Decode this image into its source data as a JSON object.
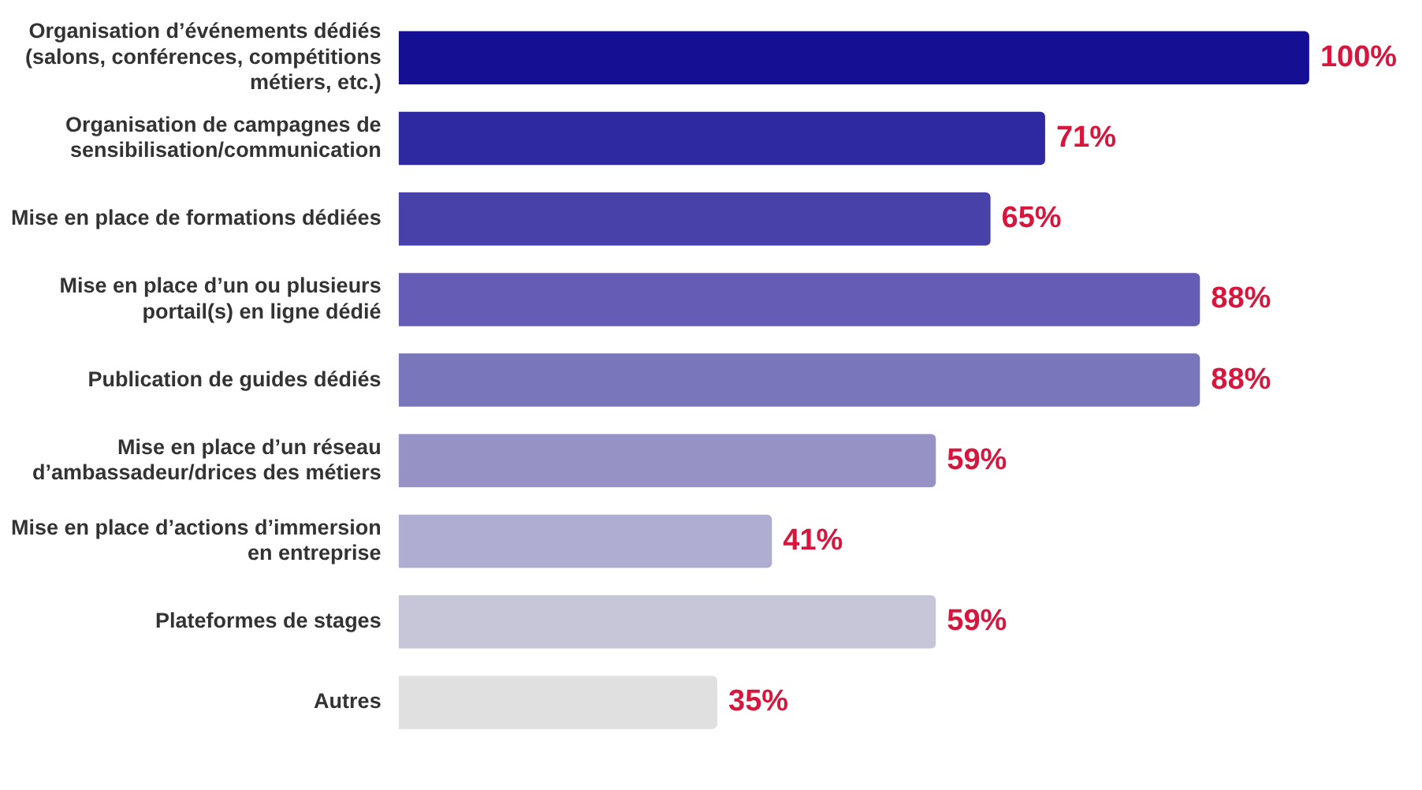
{
  "chart_data": {
    "type": "bar",
    "orientation": "horizontal",
    "categories": [
      "Organisation d’événements dédiés (salons, conférences, compétitions métiers, etc.)",
      "Organisation de campagnes de sensibilisation/communication",
      "Mise en place de formations dédiées",
      "Mise en place d’un ou plusieurs portail(s) en ligne dédié",
      "Publication de guides dédiés",
      "Mise en place d’un réseau d’ambassadeur/drices des métiers",
      "Mise en place d’actions d’immersion en entreprise",
      "Plateformes de stages",
      "Autres"
    ],
    "values": [
      100,
      71,
      65,
      88,
      88,
      59,
      41,
      59,
      35
    ],
    "colors": [
      "#150f93",
      "#2e29a0",
      "#4841a9",
      "#655db5",
      "#7a76bc",
      "#9692c6",
      "#afadd1",
      "#c7c6d9",
      "#e0e0e0"
    ],
    "value_labels": [
      "100%",
      "71%",
      "65%",
      "88%",
      "88%",
      "59%",
      "41%",
      "59%",
      "35%"
    ]
  }
}
